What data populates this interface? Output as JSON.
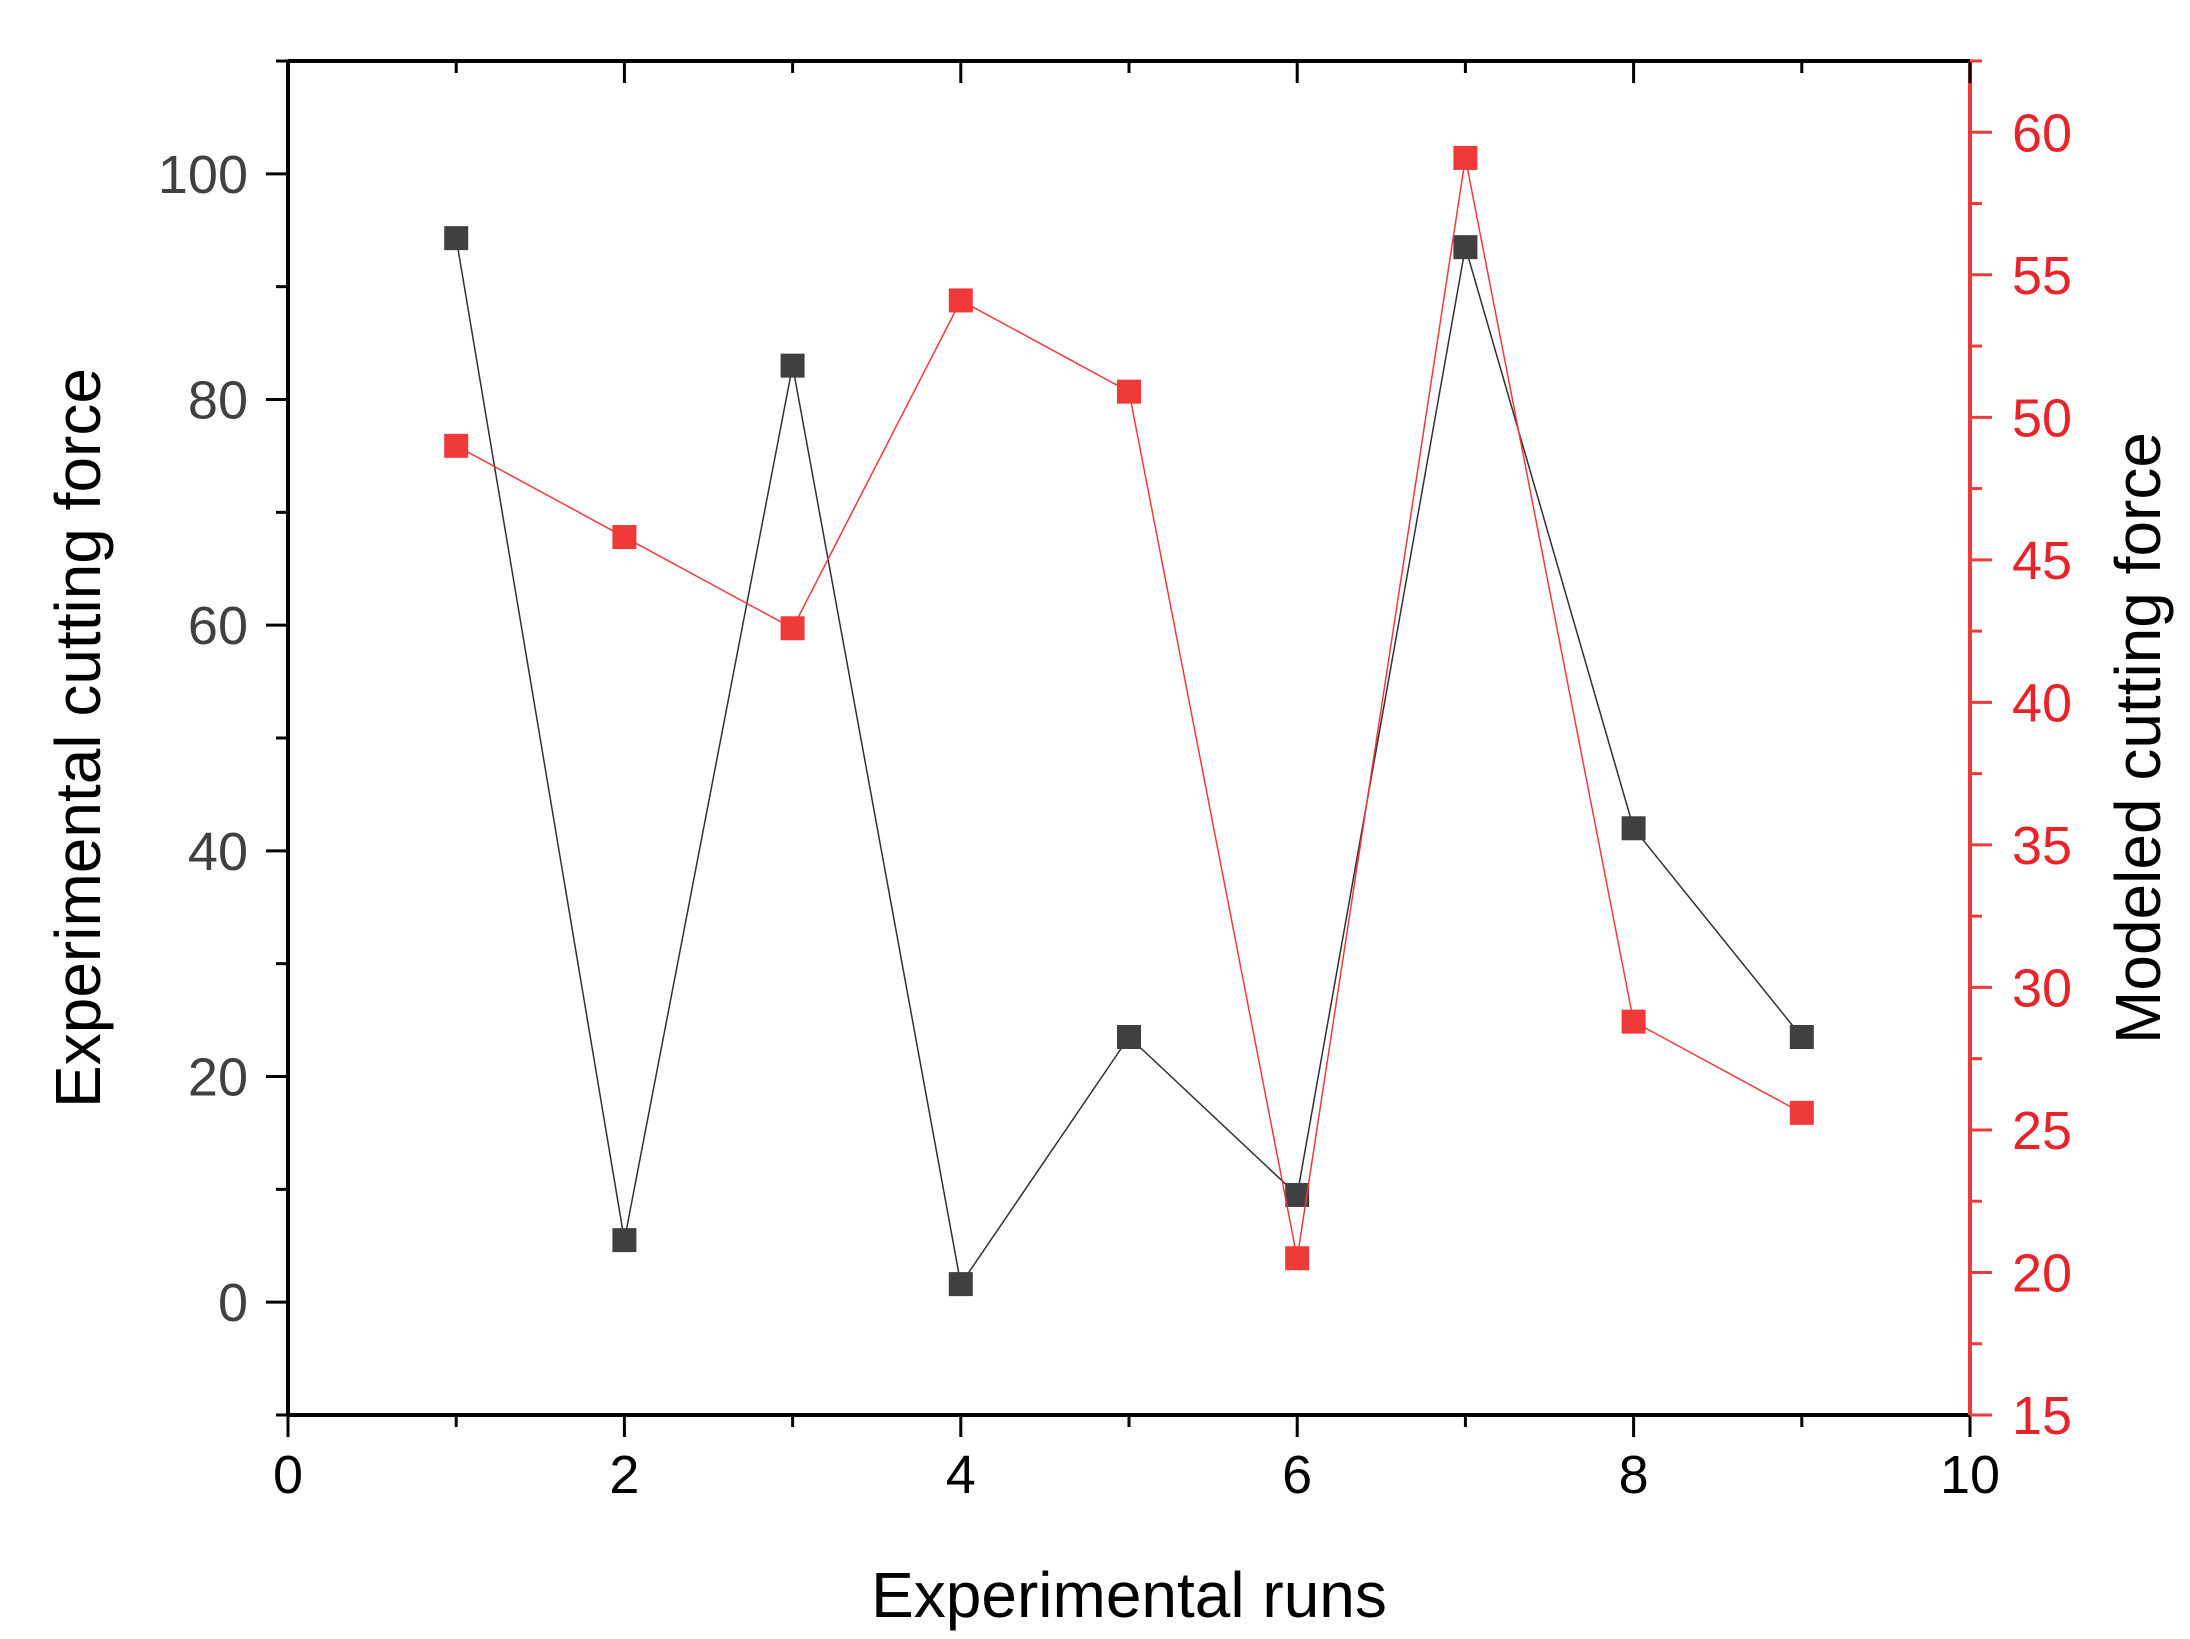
{
  "chart_data": {
    "type": "line",
    "xlabel": "Experimental runs",
    "ylabel_left": "Experimental cutting force",
    "ylabel_right": "Modeled cutting force",
    "xlim": [
      0,
      10
    ],
    "ylim_left": [
      -10,
      110
    ],
    "ylim_right": [
      15,
      62.5
    ],
    "x_ticks": [
      "0",
      "2",
      "4",
      "6",
      "8",
      "10"
    ],
    "y_left_ticks": [
      "0",
      "20",
      "40",
      "60",
      "80",
      "100"
    ],
    "y_right_ticks": [
      "15",
      "20",
      "25",
      "30",
      "35",
      "40",
      "45",
      "50",
      "55",
      "60"
    ],
    "grid": false,
    "series": [
      {
        "axis": "left",
        "color": "#404040",
        "marker": "square",
        "x": [
          1,
          2,
          3,
          4,
          5,
          6,
          7,
          8,
          9
        ],
        "values": [
          94.3,
          5.5,
          83,
          1.6,
          23.5,
          9.5,
          93.5,
          42,
          23.5
        ]
      },
      {
        "axis": "right",
        "color": "#f03a3a",
        "marker": "square",
        "x": [
          1,
          2,
          3,
          4,
          5,
          6,
          7,
          8,
          9
        ],
        "values": [
          49,
          45.8,
          42.6,
          54.1,
          50.9,
          20.5,
          59.1,
          28.8,
          25.6
        ]
      }
    ]
  }
}
